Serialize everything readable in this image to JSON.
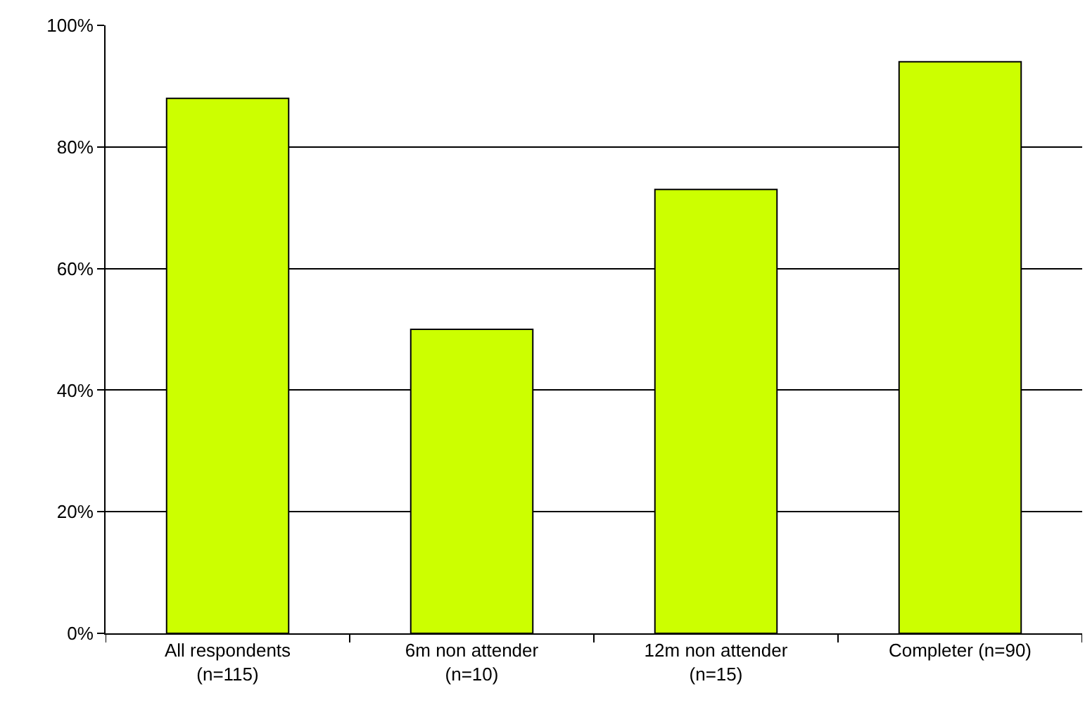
{
  "chart_data": {
    "type": "bar",
    "categories": [
      "All respondents\n(n=115)",
      "6m non attender\n(n=10)",
      "12m non attender\n(n=15)",
      "Completer (n=90)"
    ],
    "values": [
      88,
      50,
      73,
      94
    ],
    "color": "#ccff00",
    "ylim": [
      0,
      100
    ],
    "yticks": [
      {
        "value": 0,
        "label": "0%"
      },
      {
        "value": 20,
        "label": "20%"
      },
      {
        "value": 40,
        "label": "40%"
      },
      {
        "value": 60,
        "label": "60%"
      },
      {
        "value": 80,
        "label": "80%"
      },
      {
        "value": 100,
        "label": "100%"
      }
    ],
    "grid": "y"
  }
}
